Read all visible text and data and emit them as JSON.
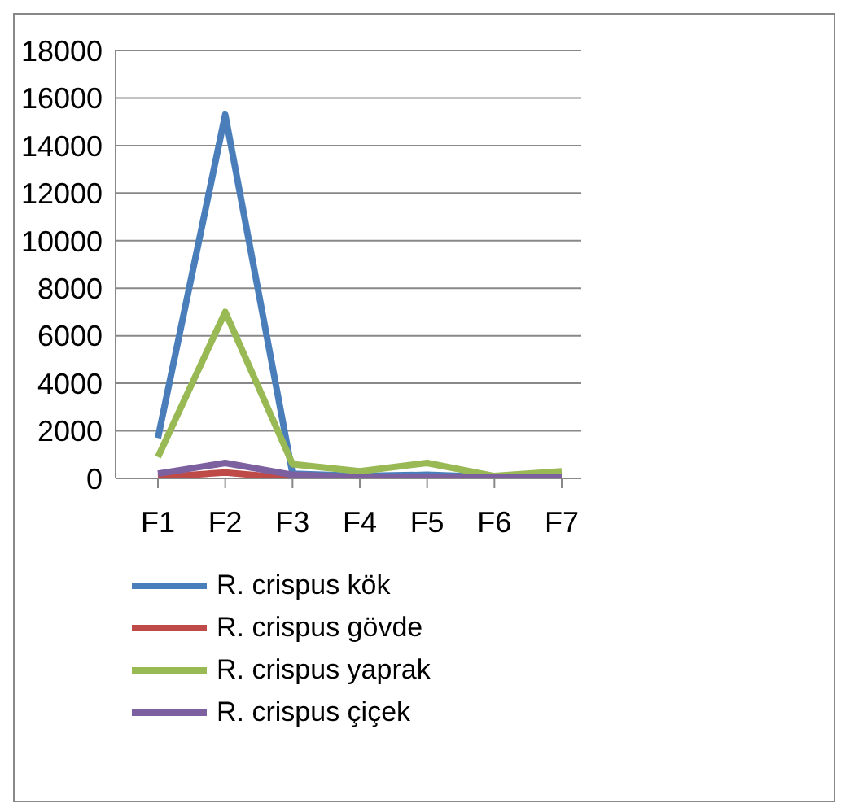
{
  "chart_data": {
    "type": "line",
    "categories": [
      "F1",
      "F2",
      "F3",
      "F4",
      "F5",
      "F6",
      "F7"
    ],
    "series": [
      {
        "name": "R. crispus kök",
        "color": "#4a7ebb",
        "values": [
          1700,
          15300,
          200,
          100,
          150,
          50,
          100
        ]
      },
      {
        "name": "R. crispus gövde",
        "color": "#be4b48",
        "values": [
          50,
          250,
          0,
          null,
          null,
          null,
          null
        ]
      },
      {
        "name": "R. crispus yaprak",
        "color": "#98b954",
        "values": [
          900,
          7000,
          600,
          300,
          650,
          100,
          300
        ]
      },
      {
        "name": "R. crispus çiçek",
        "color": "#7d60a0",
        "values": [
          200,
          650,
          150,
          50,
          50,
          50,
          50
        ]
      }
    ],
    "ylim": [
      0,
      18000
    ],
    "yticks": [
      0,
      2000,
      4000,
      6000,
      8000,
      10000,
      12000,
      14000,
      16000,
      18000
    ],
    "grid": "y",
    "legend": "bottom",
    "marker": "none"
  }
}
